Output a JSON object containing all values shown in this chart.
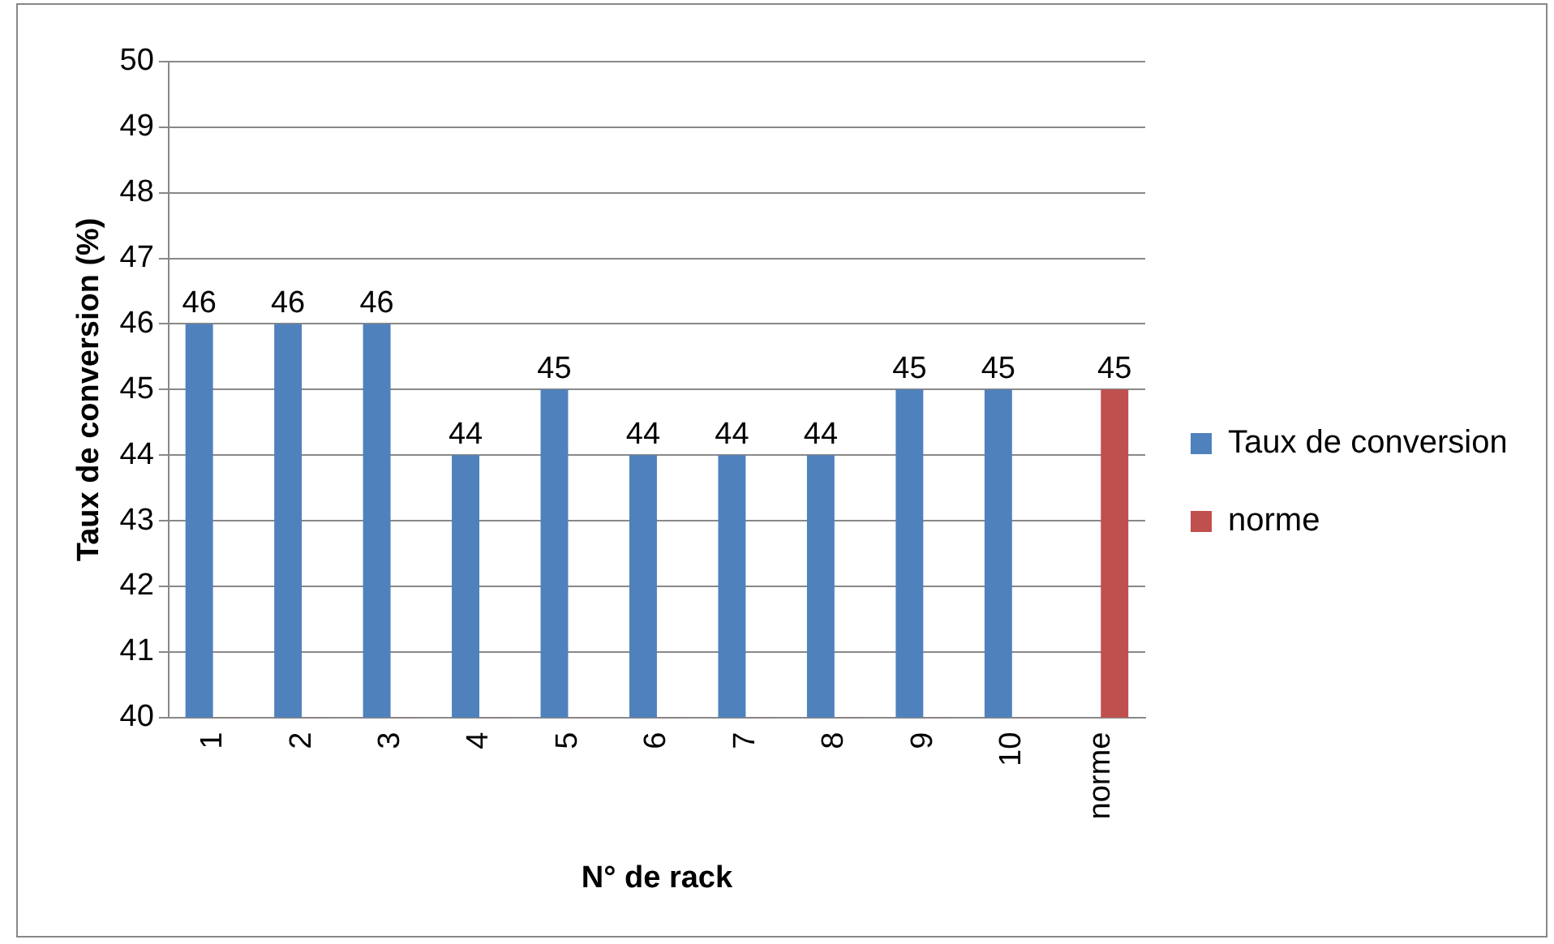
{
  "chart_data": {
    "type": "bar",
    "xlabel": "N° de rack",
    "ylabel": "Taux de conversion (%)",
    "categories": [
      "1",
      "2",
      "3",
      "4",
      "5",
      "6",
      "7",
      "8",
      "9",
      "10",
      "norme"
    ],
    "series": [
      {
        "name": "Taux de conversion",
        "color": "#4f81bd",
        "values": [
          46,
          46,
          46,
          44,
          45,
          44,
          44,
          44,
          45,
          45,
          null
        ],
        "value_labels": [
          "46",
          "46",
          "46",
          "44",
          "45",
          "44",
          "44",
          "44",
          "45",
          "45",
          null
        ]
      },
      {
        "name": "norme",
        "color": "#c0504d",
        "values": [
          40,
          40,
          40,
          40,
          40,
          40,
          40,
          40,
          40,
          40,
          45
        ],
        "value_labels": [
          null,
          null,
          null,
          null,
          null,
          null,
          null,
          null,
          null,
          null,
          "45"
        ]
      }
    ],
    "ylim": [
      40,
      50
    ],
    "yticks": [
      40,
      41,
      42,
      43,
      44,
      45,
      46,
      47,
      48,
      49,
      50
    ],
    "grid": "y",
    "legend": "right"
  }
}
